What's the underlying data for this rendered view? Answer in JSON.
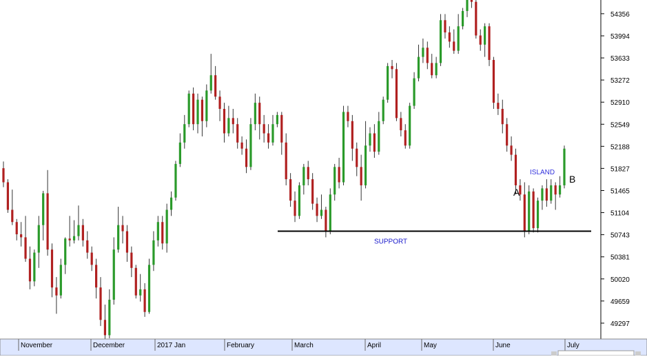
{
  "chart_data": {
    "type": "candlestick",
    "y_ticks": [
      54356,
      53994,
      53633,
      53272,
      52910,
      52549,
      52188,
      51827,
      51465,
      51104,
      50743,
      50381,
      50020,
      49659,
      49297
    ],
    "x_labels": [
      "November",
      "December",
      "2017 Jan",
      "February",
      "March",
      "April",
      "May",
      "June",
      "July"
    ],
    "ylim": [
      49060,
      54580
    ],
    "support_level": 50800,
    "support_label": "SUPPORT",
    "annotations": [
      {
        "text": "A",
        "kind": "letter"
      },
      {
        "text": "ISLAND",
        "kind": "blue"
      },
      {
        "text": "B",
        "kind": "letter"
      }
    ],
    "colors": {
      "up": "#2a9a2a",
      "down": "#b02020",
      "support_text": "#1a1acc",
      "island_text": "#3333dd",
      "axis_bar": "#dde6ff"
    },
    "candles": [
      [
        51830,
        51600,
        51940,
        51520
      ],
      [
        51600,
        51150,
        51650,
        51100
      ],
      [
        51150,
        50950,
        51480,
        50900
      ],
      [
        50950,
        50750,
        51000,
        50650
      ],
      [
        50750,
        50700,
        50950,
        50550
      ],
      [
        50700,
        50350,
        51050,
        50300
      ],
      [
        50350,
        49980,
        50550,
        49850
      ],
      [
        49980,
        50450,
        50500,
        49900
      ],
      [
        50450,
        50900,
        51050,
        50200
      ],
      [
        50900,
        51420,
        51460,
        50650
      ],
      [
        51420,
        50500,
        51800,
        50400
      ],
      [
        50500,
        49880,
        50600,
        49720
      ],
      [
        49880,
        49750,
        50050,
        49450
      ],
      [
        49750,
        50250,
        50350,
        49700
      ],
      [
        50250,
        50680,
        50700,
        50100
      ],
      [
        50680,
        50650,
        51050,
        50550
      ],
      [
        50650,
        50720,
        50980,
        50600
      ],
      [
        50720,
        50900,
        51220,
        50650
      ],
      [
        50900,
        50650,
        51000,
        50550
      ],
      [
        50650,
        50450,
        50800,
        50350
      ],
      [
        50450,
        50250,
        50550,
        50150
      ],
      [
        50250,
        49880,
        50350,
        49700
      ],
      [
        49880,
        49350,
        50050,
        49250
      ],
      [
        49350,
        49100,
        49600,
        48950
      ],
      [
        49100,
        49680,
        49850,
        49050
      ],
      [
        49680,
        50500,
        50700,
        49600
      ],
      [
        50500,
        50900,
        51200,
        50450
      ],
      [
        50900,
        50800,
        51050,
        50600
      ],
      [
        50800,
        50450,
        50900,
        50300
      ],
      [
        50450,
        50200,
        50550,
        50050
      ],
      [
        50200,
        49750,
        50250,
        49700
      ],
      [
        49750,
        49850,
        50100,
        49650
      ],
      [
        49850,
        49480,
        49950,
        49400
      ],
      [
        49480,
        50250,
        50350,
        49450
      ],
      [
        50250,
        50650,
        50800,
        50150
      ],
      [
        50650,
        50950,
        51050,
        50550
      ],
      [
        50950,
        50600,
        51050,
        50500
      ],
      [
        50600,
        51150,
        51250,
        50450
      ],
      [
        51150,
        51350,
        51450,
        51050
      ],
      [
        51350,
        51900,
        51950,
        51300
      ],
      [
        51900,
        52250,
        52400,
        51850
      ],
      [
        52250,
        52550,
        52700,
        52150
      ],
      [
        52550,
        53050,
        53100,
        52500
      ],
      [
        53050,
        52550,
        53150,
        52450
      ],
      [
        52550,
        52950,
        53050,
        52400
      ],
      [
        52950,
        52600,
        53000,
        52350
      ],
      [
        52600,
        53100,
        53200,
        52500
      ],
      [
        53100,
        53350,
        53700,
        53050
      ],
      [
        53350,
        53000,
        53500,
        52950
      ],
      [
        53000,
        52800,
        53100,
        52600
      ],
      [
        52800,
        52400,
        52900,
        52250
      ],
      [
        52400,
        52650,
        52850,
        52350
      ],
      [
        52650,
        52550,
        52800,
        52400
      ],
      [
        52550,
        52250,
        52650,
        52150
      ],
      [
        52250,
        52150,
        52350,
        52050
      ],
      [
        52150,
        51850,
        52300,
        51750
      ],
      [
        51850,
        52550,
        52650,
        51800
      ],
      [
        52550,
        52900,
        53050,
        52450
      ],
      [
        52900,
        52550,
        53000,
        52300
      ],
      [
        52550,
        52400,
        52700,
        52250
      ],
      [
        52400,
        52250,
        52550,
        52150
      ],
      [
        52250,
        52550,
        52700,
        52200
      ],
      [
        52550,
        52700,
        52750,
        52500
      ],
      [
        52700,
        52250,
        52750,
        52050
      ],
      [
        52250,
        51650,
        52400,
        51550
      ],
      [
        51650,
        51300,
        51750,
        51200
      ],
      [
        51300,
        51050,
        51450,
        50950
      ],
      [
        51050,
        51550,
        51600,
        51000
      ],
      [
        51550,
        51850,
        51900,
        51400
      ],
      [
        51850,
        51650,
        51950,
        51550
      ],
      [
        51650,
        51250,
        51750,
        51150
      ],
      [
        51250,
        51050,
        51350,
        50950
      ],
      [
        51050,
        51150,
        51400,
        51000
      ],
      [
        51150,
        50800,
        51200,
        50700
      ],
      [
        50800,
        51400,
        51500,
        50750
      ],
      [
        51400,
        51850,
        51900,
        51300
      ],
      [
        51850,
        51600,
        52000,
        51500
      ],
      [
        51600,
        52750,
        52850,
        51550
      ],
      [
        52750,
        52600,
        52850,
        52500
      ],
      [
        52600,
        52150,
        52700,
        51950
      ],
      [
        52150,
        51850,
        52250,
        51700
      ],
      [
        51850,
        51550,
        52050,
        51300
      ],
      [
        51550,
        52200,
        52600,
        51500
      ],
      [
        52200,
        52400,
        52500,
        52100
      ],
      [
        52400,
        52100,
        52550,
        52000
      ],
      [
        52100,
        52600,
        52750,
        52050
      ],
      [
        52600,
        52950,
        53000,
        52550
      ],
      [
        52950,
        53500,
        53550,
        52900
      ],
      [
        53500,
        53450,
        53600,
        53300
      ],
      [
        53450,
        52650,
        53550,
        52600
      ],
      [
        52650,
        52450,
        52750,
        52350
      ],
      [
        52450,
        52200,
        52550,
        52150
      ],
      [
        52200,
        52850,
        52900,
        52150
      ],
      [
        52850,
        53300,
        53400,
        52800
      ],
      [
        53300,
        53650,
        53850,
        53250
      ],
      [
        53650,
        53800,
        53950,
        53550
      ],
      [
        53800,
        53550,
        53900,
        53450
      ],
      [
        53550,
        53350,
        53700,
        53300
      ],
      [
        53350,
        53550,
        53650,
        53300
      ],
      [
        53550,
        54250,
        54350,
        53500
      ],
      [
        54250,
        54050,
        54350,
        53950
      ],
      [
        54050,
        53900,
        54150,
        53800
      ],
      [
        53900,
        53750,
        54100,
        53700
      ],
      [
        53750,
        54150,
        54350,
        53700
      ],
      [
        54150,
        54400,
        54450,
        54100
      ],
      [
        54400,
        54600,
        54650,
        54300
      ],
      [
        54600,
        54550,
        54660,
        54450
      ],
      [
        54550,
        54000,
        54600,
        53950
      ],
      [
        54000,
        53850,
        54100,
        53750
      ],
      [
        53850,
        54150,
        54200,
        53650
      ],
      [
        54150,
        53600,
        54200,
        53500
      ],
      [
        53600,
        52900,
        53650,
        52800
      ],
      [
        52900,
        52800,
        53050,
        52700
      ],
      [
        52800,
        52550,
        52950,
        52400
      ],
      [
        52550,
        52200,
        52650,
        52100
      ],
      [
        52200,
        52050,
        52350,
        51950
      ],
      [
        52050,
        51550,
        52150,
        51400
      ],
      [
        51550,
        51400,
        51650,
        51300
      ],
      [
        51400,
        50800,
        51600,
        50700
      ],
      [
        50800,
        51450,
        51550,
        50750
      ],
      [
        51450,
        50850,
        51500,
        50780
      ],
      [
        50850,
        51300,
        51350,
        50780
      ],
      [
        51300,
        51500,
        51550,
        51150
      ],
      [
        51500,
        51300,
        51650,
        51200
      ],
      [
        51300,
        51550,
        51650,
        51250
      ],
      [
        51550,
        51400,
        51600,
        51150
      ],
      [
        51400,
        51550,
        51700,
        51350
      ],
      [
        51550,
        52150,
        52200,
        51500
      ]
    ]
  }
}
